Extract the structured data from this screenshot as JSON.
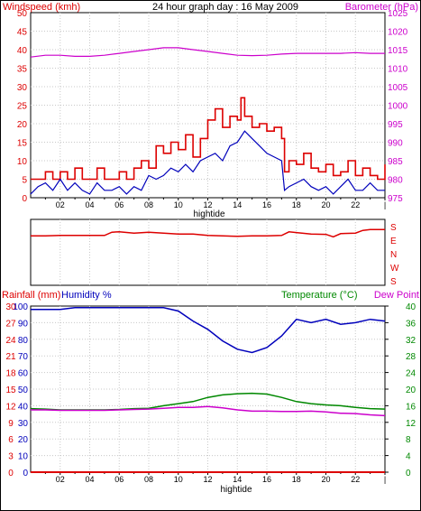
{
  "header": {
    "title": "24 hour graph day : 16 May 2009",
    "left_label": "Windspeed (kmh)",
    "right_label": "Barometer (hPa)"
  },
  "colors": {
    "wind": "#dd0000",
    "gust": "#dd0000",
    "wind_avg": "#0000bb",
    "barometer": "#cc00cc",
    "direction": "#dd0000",
    "humidity": "#0000bb",
    "temperature": "#008800",
    "dewpoint": "#cc00cc",
    "rain": "#dd0000",
    "frame": "#000000",
    "grid": "#c8c8c8"
  },
  "chart_data": [
    {
      "type": "line",
      "title": "24 hour graph day : 16 May 2009",
      "xlabel": "hightide",
      "x_ticks": [
        "02",
        "04",
        "06",
        "08",
        "10",
        "12",
        "14",
        "16",
        "18",
        "20",
        "22",
        "|"
      ],
      "x_range": [
        0,
        24
      ],
      "ylabel_left": "Windspeed (kmh)",
      "ylim_left": [
        0,
        50
      ],
      "y_ticks_left": [
        0,
        5,
        10,
        15,
        20,
        25,
        30,
        35,
        40,
        45,
        50
      ],
      "ylabel_right": "Barometer (hPa)",
      "ylim_right": [
        975,
        1025
      ],
      "y_ticks_right": [
        975,
        980,
        985,
        990,
        995,
        1000,
        1005,
        1010,
        1015,
        1020,
        1025
      ],
      "grid": true,
      "series": [
        {
          "key": "gust",
          "axis": "left",
          "step": true,
          "x": [
            0,
            0.5,
            1,
            1.5,
            2,
            2.5,
            3,
            3.5,
            4,
            4.5,
            5,
            5.5,
            6,
            6.5,
            7,
            7.5,
            8,
            8.5,
            9,
            9.5,
            10,
            10.5,
            11,
            11.5,
            12,
            12.5,
            13,
            13.5,
            14,
            14.25,
            14.5,
            15,
            15.5,
            16,
            16.5,
            17,
            17.2,
            17.5,
            18,
            18.5,
            19,
            19.5,
            20,
            20.5,
            21,
            21.5,
            22,
            22.5,
            23,
            23.5,
            24
          ],
          "y": [
            5,
            5,
            7,
            5,
            7,
            5,
            8,
            5,
            5,
            8,
            5,
            5,
            7,
            5,
            8,
            10,
            8,
            14,
            12,
            15,
            13,
            17,
            11,
            16,
            21,
            24,
            19,
            22,
            21,
            27,
            22,
            19,
            20,
            18,
            19,
            16,
            7,
            10,
            9,
            12,
            8,
            7,
            9,
            6,
            7,
            10,
            6,
            8,
            6,
            5,
            9
          ]
        },
        {
          "key": "wind_avg",
          "axis": "left",
          "step": false,
          "x": [
            0,
            0.5,
            1,
            1.5,
            2,
            2.5,
            3,
            3.5,
            4,
            4.5,
            5,
            5.5,
            6,
            6.5,
            7,
            7.5,
            8,
            8.5,
            9,
            9.5,
            10,
            10.5,
            11,
            11.5,
            12,
            12.5,
            13,
            13.5,
            14,
            14.5,
            15,
            15.5,
            16,
            16.5,
            17,
            17.2,
            17.5,
            18,
            18.5,
            19,
            19.5,
            20,
            20.5,
            21,
            21.5,
            22,
            22.5,
            23,
            23.5,
            24
          ],
          "y": [
            1,
            3,
            4,
            2,
            5,
            2,
            4,
            2,
            1,
            4,
            2,
            2,
            3,
            1,
            3,
            2,
            6,
            5,
            6,
            8,
            7,
            9,
            7,
            10,
            11,
            12,
            10,
            14,
            15,
            18,
            16,
            14,
            12,
            11,
            10,
            2,
            3,
            4,
            5,
            3,
            2,
            3,
            1,
            3,
            5,
            2,
            2,
            4,
            2,
            2
          ]
        },
        {
          "key": "barometer",
          "axis": "right",
          "step": false,
          "x": [
            0,
            1,
            2,
            3,
            4,
            5,
            6,
            7,
            8,
            9,
            10,
            11,
            12,
            13,
            14,
            15,
            16,
            17,
            18,
            19,
            20,
            21,
            22,
            23,
            24
          ],
          "y": [
            1013,
            1013.5,
            1013.5,
            1013.2,
            1013.2,
            1013.5,
            1014,
            1014.5,
            1015,
            1015.5,
            1015.5,
            1015,
            1014.5,
            1014,
            1013.5,
            1013.4,
            1013.5,
            1013.8,
            1014,
            1014,
            1014,
            1014,
            1014.2,
            1014,
            1014
          ]
        }
      ]
    },
    {
      "type": "line",
      "title": "",
      "x_range": [
        0,
        24
      ],
      "y_ticks_right": [
        "S",
        "E",
        "N",
        "W",
        "S"
      ],
      "grid": true,
      "series": [
        {
          "key": "direction",
          "y_domain": [
            0,
            360
          ],
          "x": [
            0,
            1,
            2,
            3,
            4,
            5,
            5.5,
            6,
            7,
            8,
            9,
            10,
            11,
            12,
            13,
            14,
            15,
            16,
            17,
            17.5,
            18,
            19,
            20,
            20.5,
            21,
            22,
            22.5,
            23,
            24
          ],
          "y": [
            270,
            270,
            272,
            272,
            272,
            272,
            290,
            292,
            285,
            290,
            285,
            280,
            280,
            272,
            270,
            268,
            270,
            270,
            272,
            292,
            288,
            280,
            278,
            265,
            282,
            285,
            300,
            305,
            305
          ]
        }
      ]
    },
    {
      "type": "line",
      "title": "",
      "xlabel": "hightide",
      "x_ticks": [
        "02",
        "04",
        "06",
        "08",
        "10",
        "12",
        "14",
        "16",
        "18",
        "20",
        "22",
        "|"
      ],
      "x_range": [
        0,
        24
      ],
      "ylabel_left_a": "Rainfall (mm)",
      "ylabel_left_b": "Humidity %",
      "ylabel_right_a": "Temperature (°C)",
      "ylabel_right_b": "Dew Point",
      "y_ticks_rain": [
        0,
        3,
        6,
        9,
        12,
        15,
        18,
        21,
        24,
        27,
        30
      ],
      "y_ticks_humidity": [
        0,
        10,
        20,
        30,
        40,
        50,
        60,
        70,
        80,
        90,
        100
      ],
      "y_ticks_temp": [
        0,
        4,
        8,
        12,
        16,
        20,
        24,
        28,
        32,
        36,
        40
      ],
      "grid": true,
      "series": [
        {
          "key": "humidity",
          "y_domain": [
            0,
            100
          ],
          "x": [
            0,
            1,
            2,
            3,
            4,
            5,
            6,
            7,
            8,
            9,
            10,
            11,
            12,
            13,
            14,
            15,
            16,
            17,
            18,
            19,
            20,
            21,
            22,
            23,
            24
          ],
          "y": [
            98,
            98,
            98,
            99,
            99,
            99,
            99,
            99,
            99,
            99,
            97,
            91,
            86,
            79,
            74,
            72,
            75,
            82,
            92,
            90,
            92,
            89,
            90,
            92,
            91
          ]
        },
        {
          "key": "temperature",
          "y_domain": [
            0,
            40
          ],
          "x": [
            0,
            1,
            2,
            3,
            4,
            5,
            6,
            7,
            8,
            9,
            10,
            11,
            12,
            13,
            14,
            15,
            16,
            17,
            18,
            19,
            20,
            21,
            22,
            23,
            24
          ],
          "y": [
            15.3,
            15.2,
            15,
            15,
            15,
            15,
            15.1,
            15.3,
            15.4,
            16,
            16.5,
            17,
            18,
            18.6,
            18.9,
            19,
            18.8,
            18,
            17,
            16.5,
            16.2,
            16,
            15.6,
            15.3,
            15.2
          ]
        },
        {
          "key": "dewpoint",
          "y_domain": [
            0,
            40
          ],
          "x": [
            0,
            1,
            2,
            3,
            4,
            5,
            6,
            7,
            8,
            9,
            10,
            11,
            12,
            13,
            14,
            15,
            16,
            17,
            18,
            19,
            20,
            21,
            22,
            23,
            24
          ],
          "y": [
            15,
            15,
            14.9,
            14.9,
            14.9,
            14.9,
            15,
            15.1,
            15.2,
            15.4,
            15.6,
            15.6,
            15.8,
            15.5,
            15,
            14.7,
            14.7,
            14.6,
            14.6,
            14.7,
            14.5,
            14.2,
            14.1,
            13.8,
            13.6
          ]
        },
        {
          "key": "rain",
          "y_domain": [
            0,
            30
          ],
          "x": [
            0,
            12,
            24
          ],
          "y": [
            0,
            0,
            0
          ]
        }
      ]
    }
  ]
}
